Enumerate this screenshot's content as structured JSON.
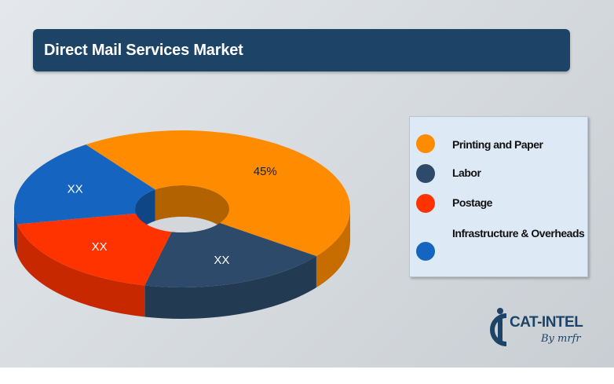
{
  "header": {
    "title": "Direct Mail Services Market"
  },
  "chart_data": {
    "type": "pie",
    "categories": [
      "Printing and Paper",
      "Labor",
      "Postage",
      "Infrastructure & Overheads"
    ],
    "values": [
      45,
      18.3,
      18.3,
      18.4
    ],
    "data_labels": [
      "45%",
      "XX",
      "XX",
      "XX"
    ],
    "colors": [
      "#ff8c00",
      "#2d4a6b",
      "#ff3300",
      "#1565c0"
    ],
    "style": "3d-donut",
    "legend_position": "right"
  },
  "legend": {
    "items": [
      {
        "label": "Printing and Paper",
        "color": "#ff8c00"
      },
      {
        "label": "Labor",
        "color": "#2d4a6b"
      },
      {
        "label": "Postage",
        "color": "#ff3300"
      },
      {
        "label": "Infrastructure & Overheads",
        "color": "#1565c0"
      }
    ]
  },
  "logo": {
    "name": "CAT-INTEL",
    "tagline": "By mrfr",
    "icon": "cat-intel-logo-icon"
  }
}
